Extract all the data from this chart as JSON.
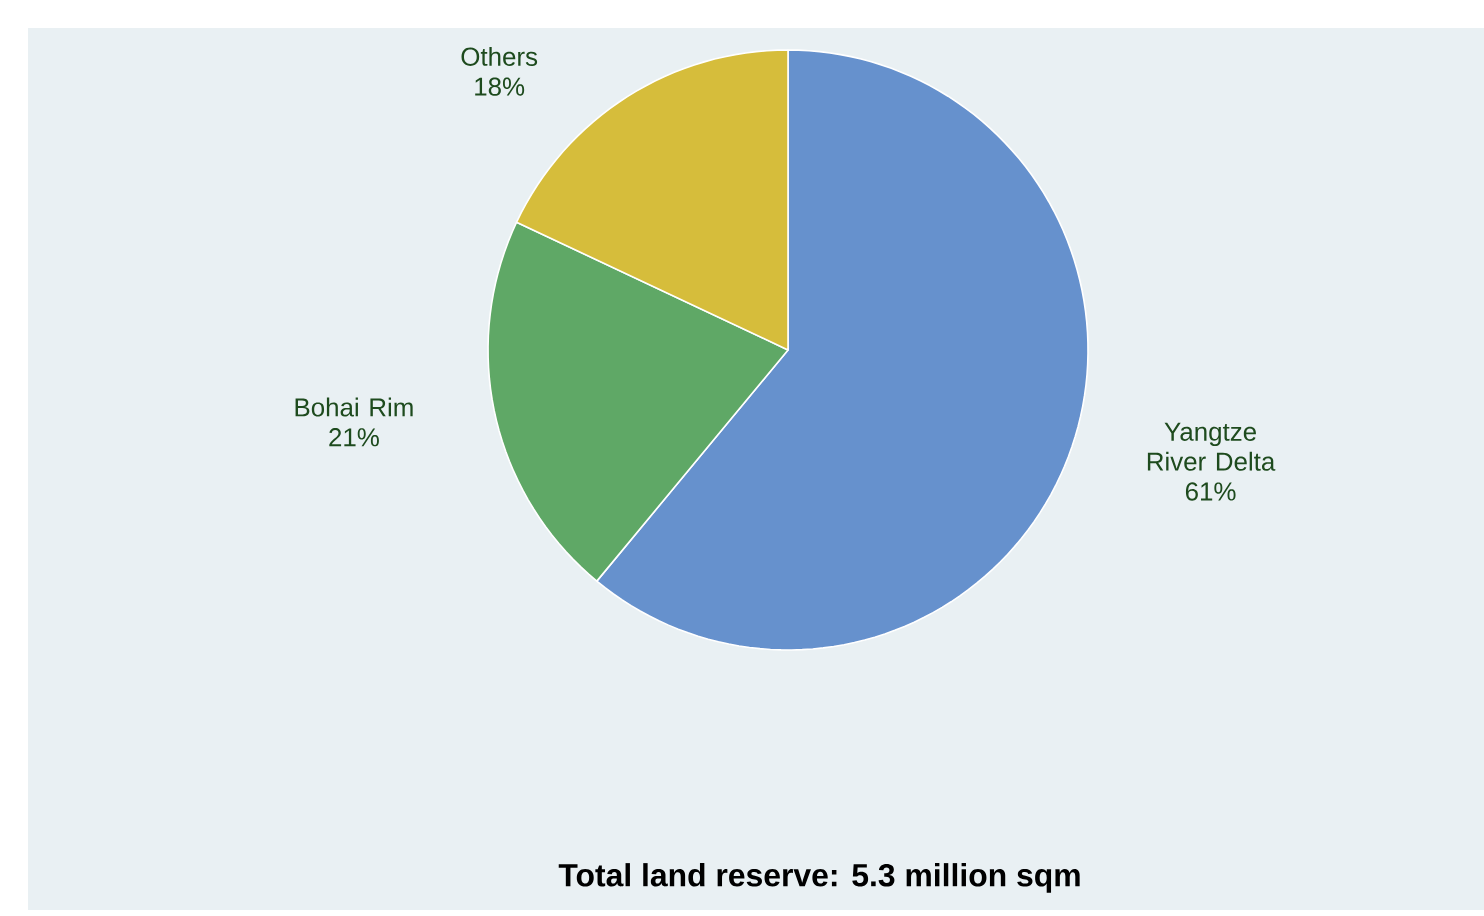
{
  "chart_data": {
    "type": "pie",
    "title": "Total land reserve: 5.3 million sqm",
    "categories": [
      "Yangtze River Delta",
      "Bohai Rim",
      "Others"
    ],
    "values": [
      61,
      21,
      18
    ],
    "value_labels": [
      "61%",
      "21%",
      "18%"
    ],
    "colors": [
      "#6691cd",
      "#5fa866",
      "#d6bd3b"
    ]
  }
}
